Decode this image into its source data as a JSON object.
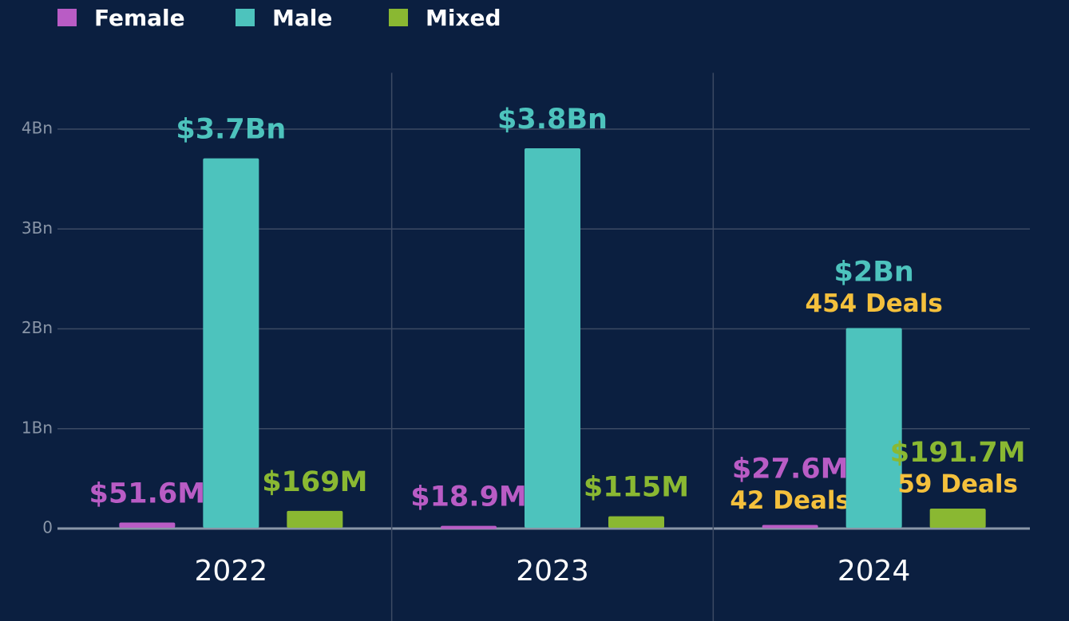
{
  "chart_data": {
    "type": "bar",
    "categories": [
      "2022",
      "2023",
      "2024"
    ],
    "series": [
      {
        "name": "Female",
        "color": "#b95cc5",
        "values": [
          0.0516,
          0.0189,
          0.0276
        ],
        "value_labels": [
          "$51.6M",
          "$18.9M",
          "$27.6M"
        ],
        "deal_labels": [
          null,
          null,
          "42 Deals"
        ]
      },
      {
        "name": "Male",
        "color": "#4dc3bd",
        "values": [
          3.7,
          3.8,
          2
        ],
        "value_labels": [
          "$3.7Bn",
          "$3.8Bn",
          "$2Bn"
        ],
        "deal_labels": [
          null,
          null,
          "454 Deals"
        ]
      },
      {
        "name": "Mixed",
        "color": "#8ab832",
        "values": [
          0.169,
          0.115,
          0.1917
        ],
        "value_labels": [
          "$169M",
          "$115M",
          "$191.7M"
        ],
        "deal_labels": [
          null,
          null,
          "59 Deals"
        ]
      }
    ],
    "deal_color": "#f4c03c",
    "ylim": [
      0,
      4.5
    ],
    "yticks": [
      0,
      {
        "value": 1,
        "label": "1Bn"
      },
      {
        "value": 2,
        "label": "2Bn"
      },
      {
        "value": 3,
        "label": "3Bn"
      },
      {
        "value": 4,
        "label": "4Bn"
      }
    ],
    "grid": true
  }
}
